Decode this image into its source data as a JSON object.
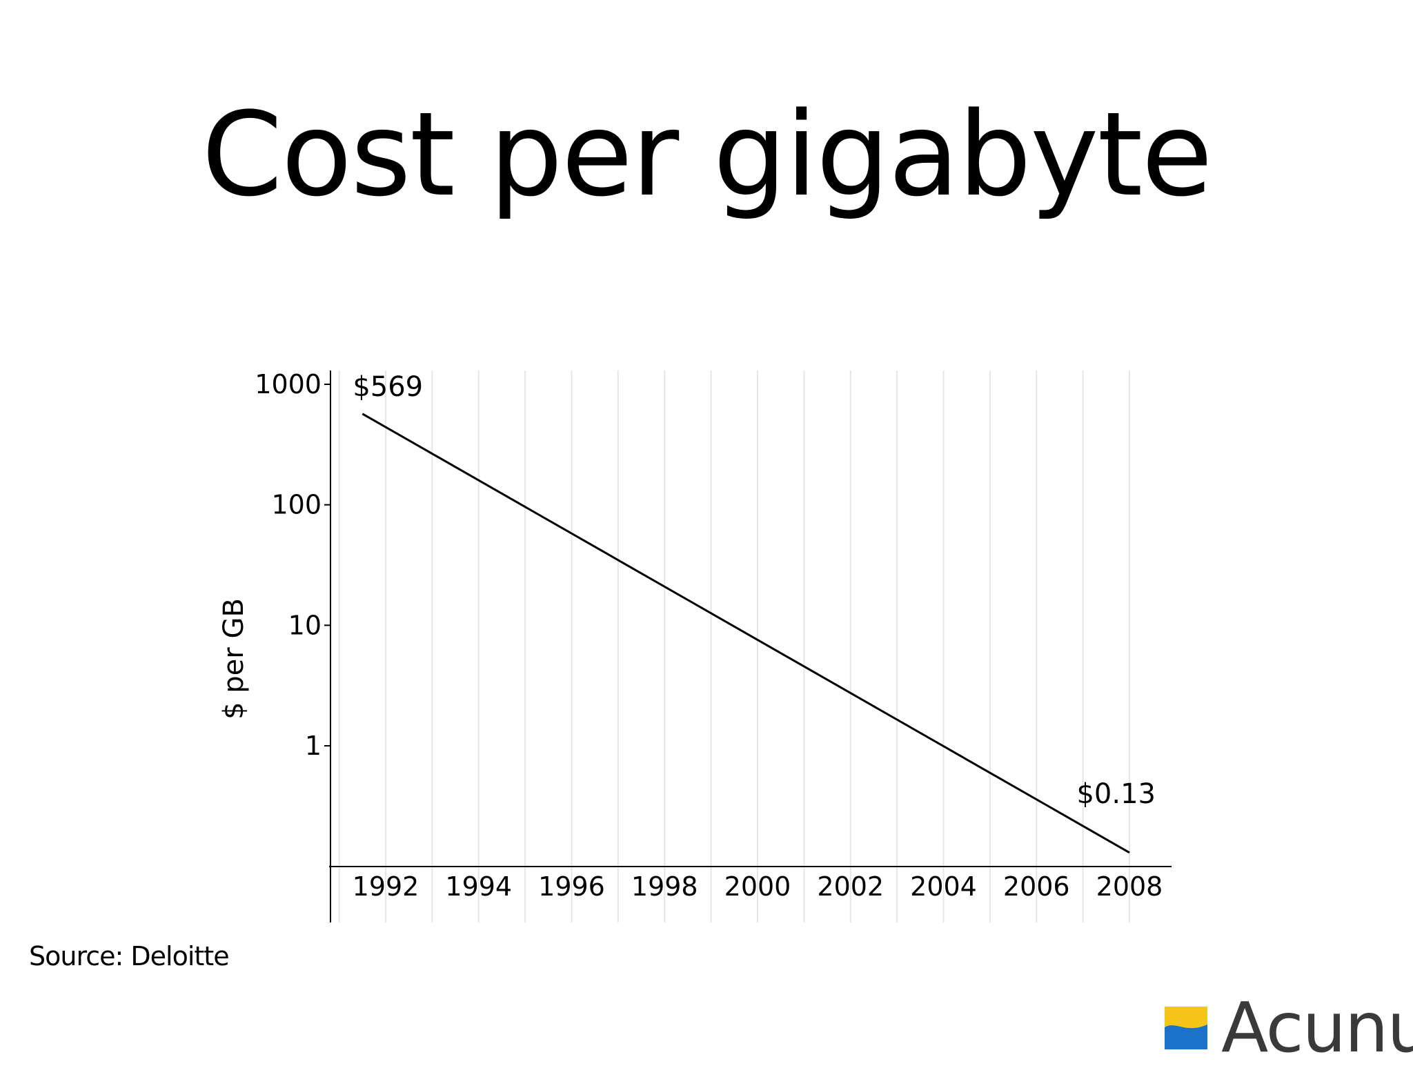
{
  "slide": {
    "title": "Cost per gigabyte",
    "source": "Source: Deloitte",
    "logo_text": "Acunu",
    "logo_colors": {
      "top": "#f5c518",
      "bottom": "#1a73c8"
    }
  },
  "chart_data": {
    "type": "line",
    "title": "",
    "xlabel": "",
    "ylabel": "$ per GB",
    "yscale": "log",
    "ylim": [
      0.1,
      1000
    ],
    "xlim": [
      1990.9,
      2008.9
    ],
    "x_ticks": [
      1992,
      1994,
      1996,
      1998,
      2000,
      2002,
      2004,
      2006,
      2008
    ],
    "y_ticks": [
      1,
      10,
      100,
      1000
    ],
    "y_tick_labels": [
      "1",
      "10",
      "100",
      "1000"
    ],
    "grid": {
      "vertical": true,
      "horizontal": false,
      "color": "#e6e6e6"
    },
    "series": [
      {
        "x": [
          1991.5,
          2008
        ],
        "y": [
          569,
          0.13
        ],
        "color": "#000000"
      }
    ],
    "annotations": [
      {
        "text": "$569",
        "x": 1991.5,
        "y": 569
      },
      {
        "text": "$0.13",
        "x": 2008,
        "y": 0.13
      }
    ]
  }
}
